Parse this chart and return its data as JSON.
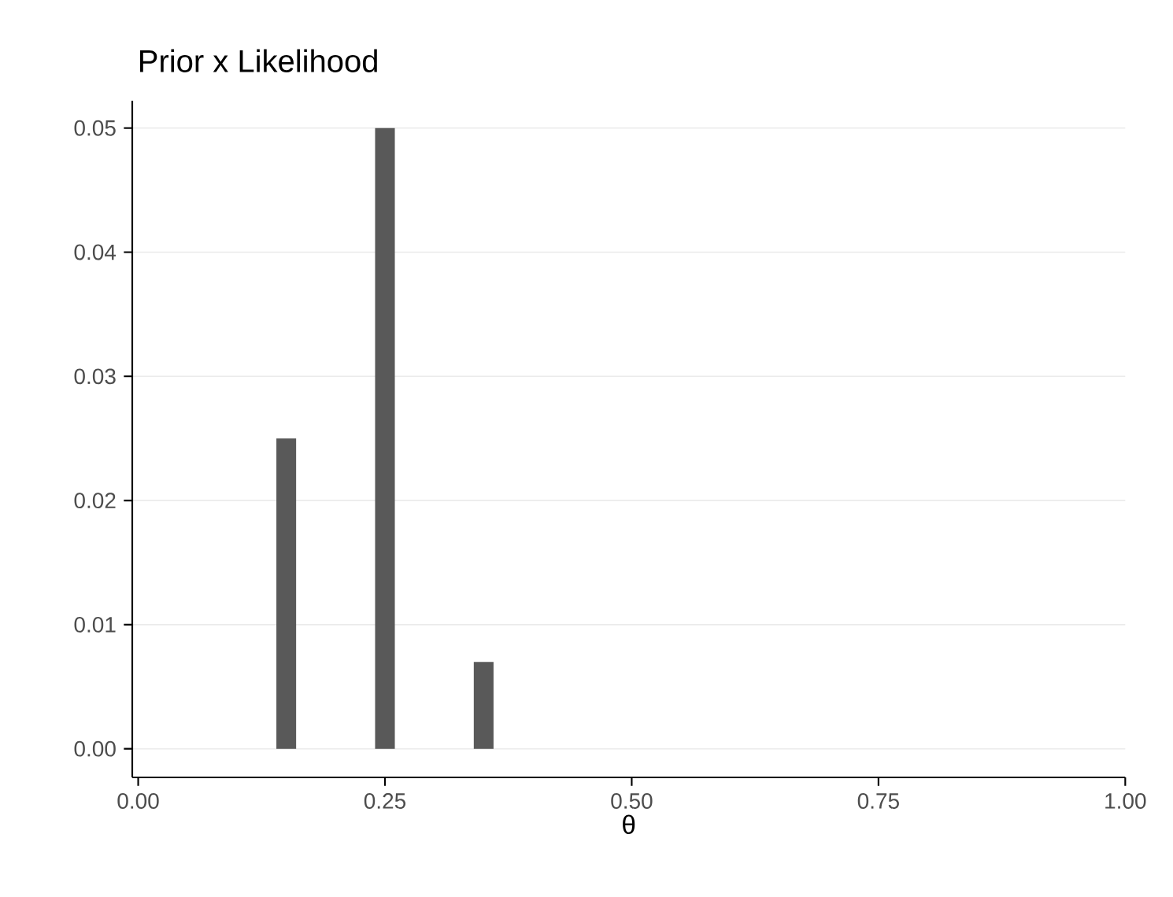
{
  "chart_data": {
    "type": "bar",
    "title": "Prior x Likelihood",
    "xlabel": "θ",
    "x": [
      0.15,
      0.25,
      0.35
    ],
    "values": [
      0.025,
      0.05,
      0.007
    ],
    "color": "#595959",
    "xlim": [
      -0.006,
      1.0
    ],
    "ylim": [
      -0.0023,
      0.0522
    ],
    "xticks": [
      {
        "value": 0,
        "label": "0.00"
      },
      {
        "value": 0.25,
        "label": "0.25"
      },
      {
        "value": 0.5,
        "label": "0.50"
      },
      {
        "value": 0.75,
        "label": "0.75"
      },
      {
        "value": 1.0,
        "label": "1.00"
      }
    ],
    "yticks": [
      {
        "value": 0,
        "label": "0.00"
      },
      {
        "value": 0.01,
        "label": "0.01"
      },
      {
        "value": 0.02,
        "label": "0.02"
      },
      {
        "value": 0.03,
        "label": "0.03"
      },
      {
        "value": 0.04,
        "label": "0.04"
      },
      {
        "value": 0.05,
        "label": "0.05"
      }
    ],
    "grid": "y"
  }
}
